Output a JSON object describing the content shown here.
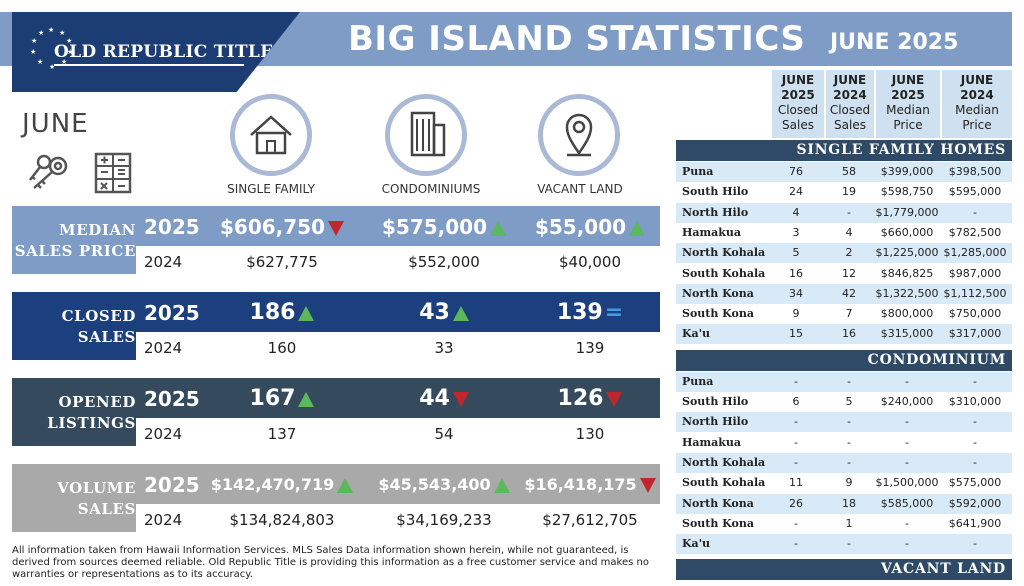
{
  "header": {
    "logo_text": "OLD REPUBLIC TITLE",
    "title": "BIG ISLAND STATISTICS",
    "subtitle": "JUNE 2025"
  },
  "month_label": "JUNE",
  "categories": [
    "SINGLE FAMILY",
    "CONDOMINIUMS",
    "VACANT LAND"
  ],
  "stats": [
    {
      "label_lines": [
        "MEDIAN",
        "SALES PRICE"
      ],
      "year1": "2025",
      "year2": "2024",
      "values_2025": [
        "$606,750",
        "$575,000",
        "$55,000"
      ],
      "trend": [
        "down",
        "up",
        "up"
      ],
      "values_2024": [
        "$627,775",
        "$552,000",
        "$40,000"
      ],
      "color": "#7f9cc6"
    },
    {
      "label_lines": [
        "CLOSED",
        "SALES"
      ],
      "year1": "2025",
      "year2": "2024",
      "values_2025": [
        "186",
        "43",
        "139"
      ],
      "trend": [
        "up",
        "up",
        "equal"
      ],
      "values_2024": [
        "160",
        "33",
        "139"
      ],
      "color": "#1c3f7e"
    },
    {
      "label_lines": [
        "OPENED",
        "LISTINGS"
      ],
      "year1": "2025",
      "year2": "2024",
      "values_2025": [
        "167",
        "44",
        "126"
      ],
      "trend": [
        "up",
        "down",
        "down"
      ],
      "values_2024": [
        "137",
        "54",
        "130"
      ],
      "color": "#364a5e"
    },
    {
      "label_lines": [
        "VOLUME",
        "SALES"
      ],
      "year1": "2025",
      "year2": "2024",
      "values_2025": [
        "$142,470,719",
        "$45,543,400",
        "$16,418,175"
      ],
      "trend": [
        "up",
        "up",
        "down"
      ],
      "values_2024": [
        "$134,824,803",
        "$34,169,233",
        "$27,612,705"
      ],
      "color": "#a9a9a9"
    }
  ],
  "equal_symbol": "=",
  "disclaimer": "All information taken from Hawaii Information Services.  MLS Sales Data information shown herein, while not guaranteed, is derived from sources deemed reliable.  Old Republic Title is providing this information as a free customer service and makes no warranties or representations as to its accuracy.",
  "table": {
    "headers": [
      [
        "JUNE",
        "2025",
        "Closed",
        "Sales"
      ],
      [
        "JUNE",
        "2024",
        "Closed",
        "Sales"
      ],
      [
        "JUNE",
        "2025",
        "Median",
        "Price"
      ],
      [
        "JUNE",
        "2024",
        "Median",
        "Price"
      ]
    ],
    "sections": [
      {
        "title": "SINGLE FAMILY HOMES",
        "rows": [
          [
            "Puna",
            "76",
            "58",
            "$399,000",
            "$398,500"
          ],
          [
            "South Hilo",
            "24",
            "19",
            "$598,750",
            "$595,000"
          ],
          [
            "North Hilo",
            "4",
            "-",
            "$1,779,000",
            "-"
          ],
          [
            "Hamakua",
            "3",
            "4",
            "$660,000",
            "$782,500"
          ],
          [
            "North Kohala",
            "5",
            "2",
            "$1,225,000",
            "$1,285,000"
          ],
          [
            "South Kohala",
            "16",
            "12",
            "$846,825",
            "$987,000"
          ],
          [
            "North Kona",
            "34",
            "42",
            "$1,322,500",
            "$1,112,500"
          ],
          [
            "South Kona",
            "9",
            "7",
            "$800,000",
            "$750,000"
          ],
          [
            "Ka'u",
            "15",
            "16",
            "$315,000",
            "$317,000"
          ]
        ]
      },
      {
        "title": "CONDOMINIUM",
        "rows": [
          [
            "Puna",
            "-",
            "-",
            "-",
            "-"
          ],
          [
            "South Hilo",
            "6",
            "5",
            "$240,000",
            "$310,000"
          ],
          [
            "North Hilo",
            "-",
            "-",
            "-",
            "-"
          ],
          [
            "Hamakua",
            "-",
            "-",
            "-",
            "-"
          ],
          [
            "North Kohala",
            "-",
            "-",
            "-",
            "-"
          ],
          [
            "South Kohala",
            "11",
            "9",
            "$1,500,000",
            "$575,000"
          ],
          [
            "North Kona",
            "26",
            "18",
            "$585,000",
            "$592,000"
          ],
          [
            "South Kona",
            "-",
            "1",
            "-",
            "$641,900"
          ],
          [
            "Ka'u",
            "-",
            "-",
            "-",
            "-"
          ]
        ]
      },
      {
        "title": "VACANT LAND",
        "rows": []
      }
    ]
  }
}
